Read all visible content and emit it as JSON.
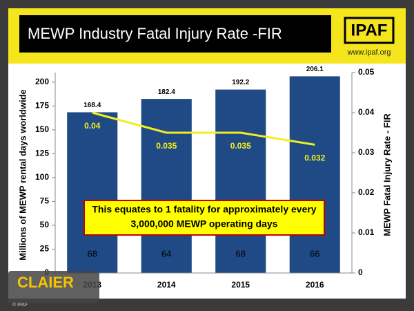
{
  "chart_data": {
    "type": "bar",
    "title": "MEWP Industry Fatal Injury Rate -FIR",
    "logo": "IPAF",
    "url": "www.ipaf.org",
    "categories": [
      "2013",
      "2014",
      "2015",
      "2016"
    ],
    "series": [
      {
        "type": "bar",
        "color": "#1f4a86",
        "values": [
          168.4,
          182.4,
          192.2,
          206.1
        ],
        "inner_values": [
          68,
          64,
          68,
          66
        ]
      },
      {
        "type": "line",
        "axis": "y2",
        "color": "#f3ee1e",
        "values": [
          0.04,
          0.035,
          0.035,
          0.032
        ]
      }
    ],
    "ylabel": "Millions of MEWP rental days worldwide",
    "y2label": "MEWP Fatal Injury Rate - FIR",
    "ylim": [
      0,
      210
    ],
    "yticks": [
      0,
      25,
      50,
      75,
      100,
      125,
      150,
      175,
      200
    ],
    "y2lim": [
      0,
      0.05
    ],
    "y2ticks": [
      0,
      0.01,
      0.02,
      0.03,
      0.04,
      0.05
    ],
    "annotation": [
      "This equates to 1 fatality for approximately every",
      "3,000,000 MEWP operating days"
    ],
    "watermark": "CLAIER",
    "copyright": "© IPAF"
  }
}
